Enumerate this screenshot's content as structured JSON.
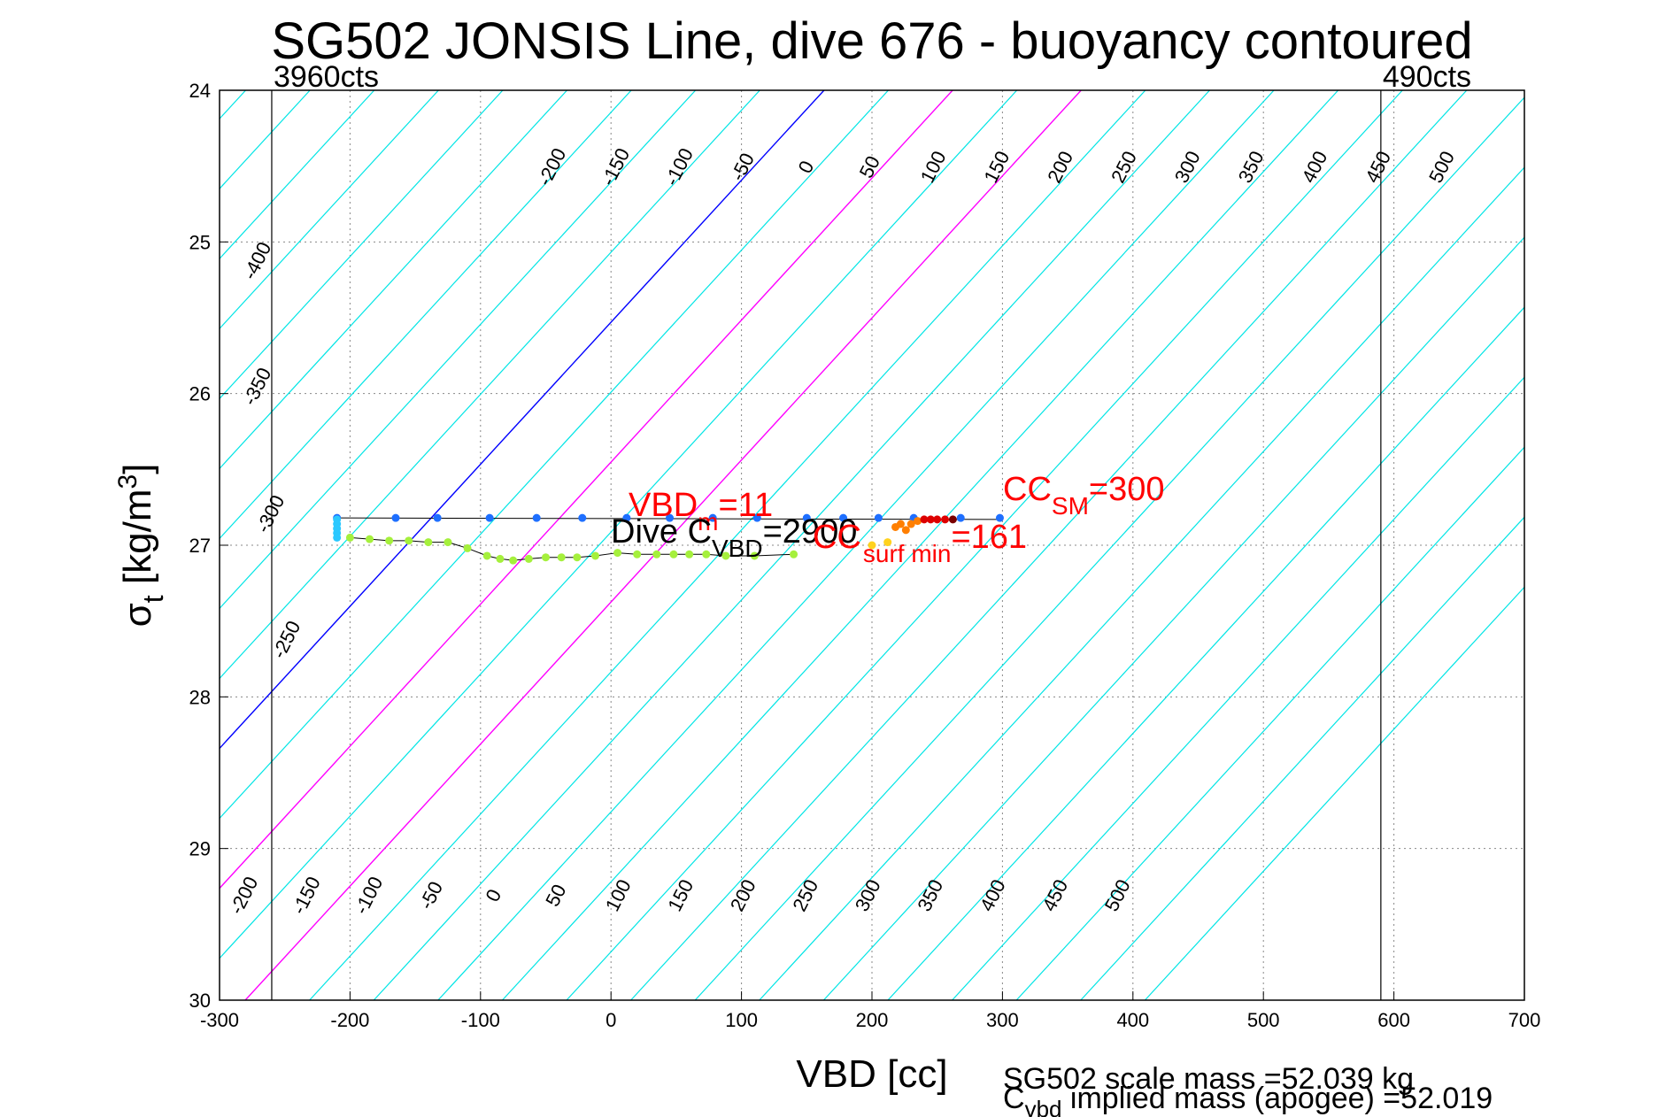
{
  "figure": {
    "title": "SG502 JONSIS Line, dive 676 - buoyancy contoured",
    "footer_line1": "SG502 scale mass =52.039 kg",
    "footer_line2_prefix": "C",
    "footer_line2_sub": "vbd",
    "footer_line2_rest": " implied mass (apogee) =52.019"
  },
  "chart_data": {
    "type": "scatter",
    "title": "SG502 JONSIS Line, dive 676 - buoyancy contoured",
    "xlabel": "VBD [cc]",
    "ylabel": "σt [kg/m3]",
    "xlim": [
      -300,
      700
    ],
    "ylim": [
      30,
      24
    ],
    "y_reversed": true,
    "xticks": [
      -300,
      -200,
      -100,
      0,
      100,
      200,
      300,
      400,
      500,
      600,
      700
    ],
    "yticks": [
      24,
      25,
      26,
      27,
      28,
      29,
      30
    ],
    "grid": true,
    "limit_lines": [
      {
        "label": "3960cts",
        "x": -260
      },
      {
        "label": "490cts",
        "x": 590
      }
    ],
    "buoyancy_contours": {
      "levels_top": [
        -400,
        -350,
        -300,
        -250,
        -200,
        -150,
        -100,
        -50,
        0,
        50,
        100,
        150,
        200,
        250,
        300,
        350,
        400,
        450,
        500
      ],
      "levels_bottom": [
        -200,
        -150,
        -100,
        -50,
        0,
        50,
        100,
        150,
        200,
        250,
        300,
        350,
        400,
        450,
        500
      ],
      "zero_color": "#0000ff",
      "highlight_levels": [
        100,
        200
      ],
      "highlight_color": "#ff00ff",
      "contour_color": "#00e5e5"
    },
    "series": [
      {
        "color": "#1e6fff",
        "points": [
          [
            -210,
            26.82
          ],
          [
            -165,
            26.82
          ],
          [
            -133,
            26.82
          ],
          [
            -93,
            26.82
          ],
          [
            -57,
            26.82
          ],
          [
            -22,
            26.82
          ],
          [
            12,
            26.82
          ],
          [
            45,
            26.82
          ],
          [
            78,
            26.82
          ],
          [
            112,
            26.82
          ],
          [
            150,
            26.82
          ],
          [
            178,
            26.82
          ],
          [
            205,
            26.82
          ],
          [
            232,
            26.82
          ],
          [
            268,
            26.82
          ],
          [
            298,
            26.82
          ]
        ]
      },
      {
        "color": "#2ac8ff",
        "points": [
          [
            -210,
            26.83
          ],
          [
            -210,
            26.86
          ],
          [
            -210,
            26.89
          ],
          [
            -210,
            26.92
          ],
          [
            -210,
            26.95
          ]
        ]
      },
      {
        "color": "#a5f03c",
        "points": [
          [
            -200,
            26.95
          ],
          [
            -185,
            26.96
          ],
          [
            -170,
            26.97
          ],
          [
            -155,
            26.97
          ],
          [
            -140,
            26.98
          ],
          [
            -125,
            26.98
          ],
          [
            -110,
            27.02
          ],
          [
            -95,
            27.07
          ],
          [
            -85,
            27.09
          ],
          [
            -75,
            27.1
          ],
          [
            -63,
            27.09
          ],
          [
            -50,
            27.08
          ],
          [
            -38,
            27.08
          ],
          [
            -26,
            27.08
          ],
          [
            -12,
            27.07
          ],
          [
            5,
            27.05
          ],
          [
            20,
            27.06
          ],
          [
            35,
            27.06
          ],
          [
            48,
            27.06
          ],
          [
            60,
            27.06
          ],
          [
            73,
            27.06
          ],
          [
            88,
            27.07
          ],
          [
            110,
            27.07
          ],
          [
            140,
            27.06
          ]
        ]
      },
      {
        "color": "#ffd21e",
        "points": [
          [
            200,
            27.0
          ],
          [
            212,
            26.98
          ]
        ]
      },
      {
        "color": "#ff7f00",
        "points": [
          [
            218,
            26.88
          ],
          [
            222,
            26.86
          ],
          [
            226,
            26.9
          ],
          [
            230,
            26.86
          ],
          [
            235,
            26.84
          ]
        ]
      },
      {
        "color": "#dd0000",
        "points": [
          [
            240,
            26.83
          ],
          [
            245,
            26.83
          ],
          [
            250,
            26.83
          ],
          [
            256,
            26.83
          ]
        ]
      },
      {
        "color": "#7a0000",
        "points": [
          [
            262,
            26.83
          ]
        ]
      }
    ],
    "annotations": {
      "vbd_main": "VBD",
      "vbd_sub": "m",
      "vbd_rest": "=11",
      "dive_main": "Dive C",
      "dive_sub": "VBD",
      "dive_rest": "=2900",
      "cc_main": "CC",
      "cc_sub": "SM",
      "cc_rest": "=300",
      "ccs_main": "CC",
      "ccs_sub": "surf min",
      "ccs_rest": "=161"
    }
  }
}
